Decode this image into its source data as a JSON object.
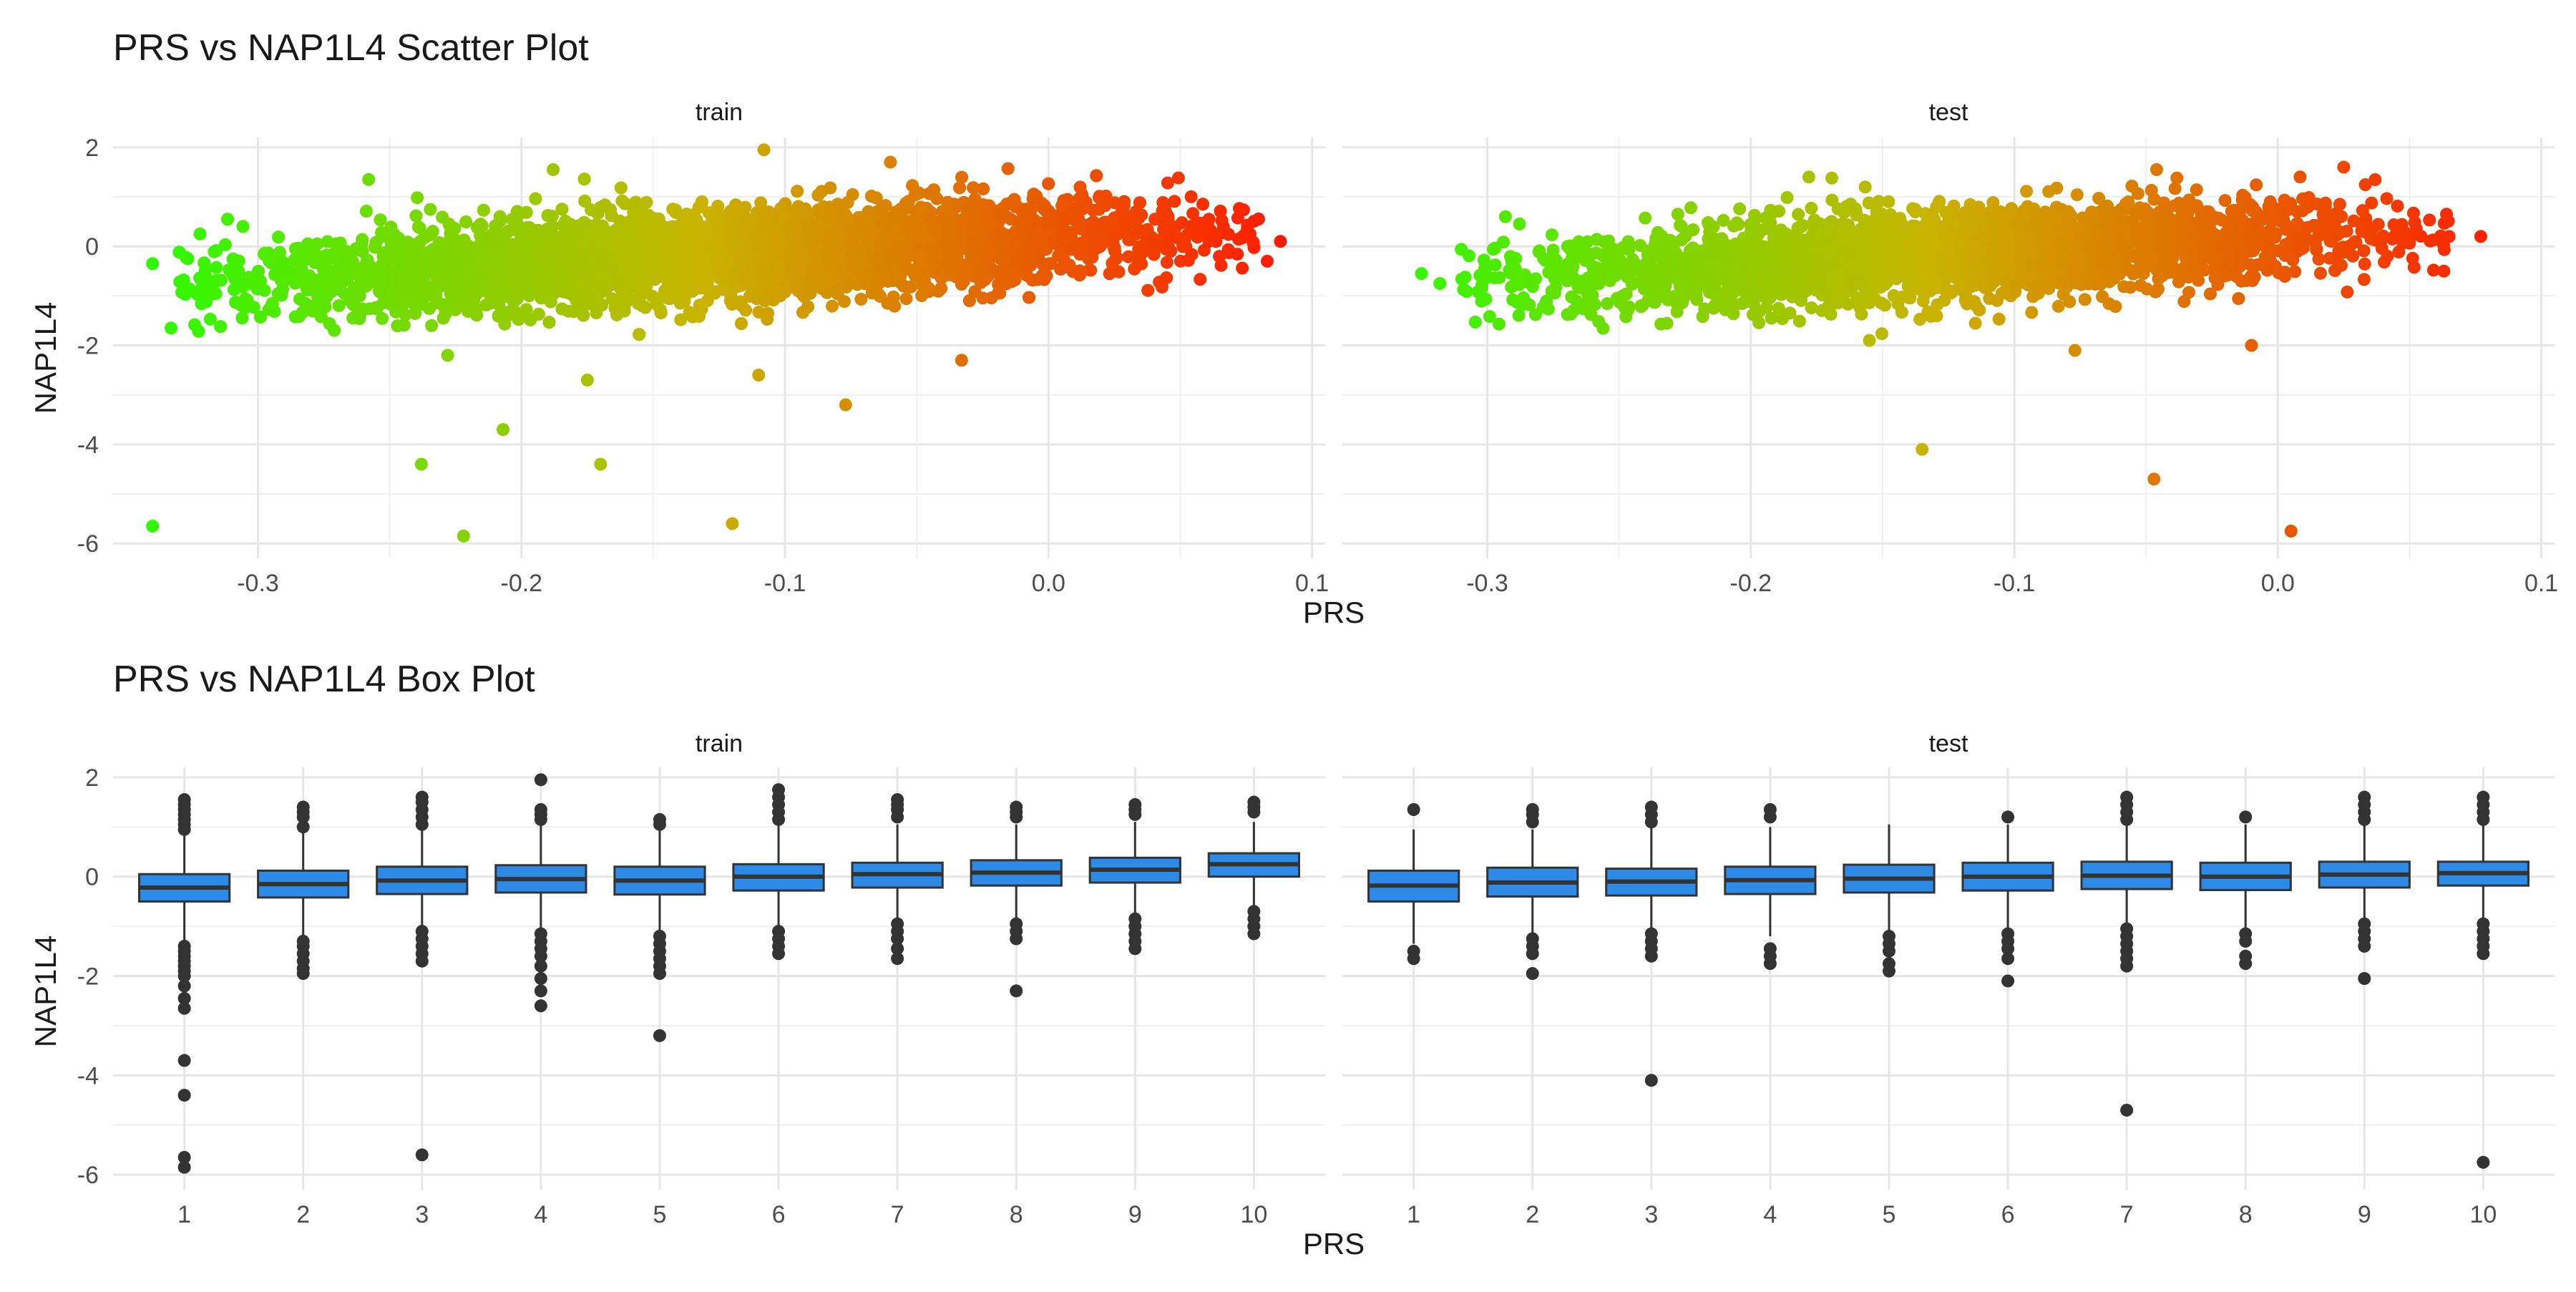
{
  "chart_data": [
    {
      "type": "scatter",
      "title": "PRS vs NAP1L4 Scatter Plot",
      "xlabel": "PRS",
      "ylabel": "NAP1L4",
      "facets": [
        "train",
        "test"
      ],
      "xlim": [
        -0.355,
        0.105
      ],
      "ylim": [
        -6.3,
        2.2
      ],
      "x_ticks": [
        -0.3,
        -0.2,
        -0.1,
        0.0,
        0.1
      ],
      "x_tick_labels": [
        "-0.3",
        "-0.2",
        "-0.1",
        "0.0",
        "0.1"
      ],
      "y_ticks": [
        2,
        0,
        -2,
        -4,
        -6
      ],
      "y_tick_labels": [
        "2",
        "0",
        "-2",
        "-4",
        "-6"
      ],
      "grid": true,
      "color_gradient": {
        "low": "#22ff00",
        "mid": "#c8b400",
        "high": "#ff1a00",
        "mapped_to": "PRS"
      },
      "trend": {
        "slope": 2.8,
        "intercept": 0.15,
        "spread": 0.45
      },
      "panels": [
        {
          "name": "train",
          "x_range": [
            -0.33,
            0.08
          ],
          "outliers": [
            {
              "x": -0.34,
              "y": -5.65
            },
            {
              "x": -0.34,
              "y": -0.35
            },
            {
              "x": -0.322,
              "y": 0.25
            },
            {
              "x": -0.333,
              "y": -1.65
            },
            {
              "x": -0.238,
              "y": -4.4
            },
            {
              "x": -0.222,
              "y": -5.85
            },
            {
              "x": -0.207,
              "y": -3.7
            },
            {
              "x": -0.17,
              "y": -4.4
            },
            {
              "x": -0.12,
              "y": -5.6
            },
            {
              "x": -0.077,
              "y": -3.2
            },
            {
              "x": -0.033,
              "y": -2.3
            },
            {
              "x": -0.108,
              "y": 1.95
            },
            {
              "x": -0.258,
              "y": 1.35
            },
            {
              "x": -0.188,
              "y": 1.55
            },
            {
              "x": 0.088,
              "y": 0.1
            },
            {
              "x": 0.083,
              "y": -0.3
            },
            {
              "x": -0.11,
              "y": -2.6
            },
            {
              "x": -0.06,
              "y": 1.7
            },
            {
              "x": -0.175,
              "y": -2.7
            },
            {
              "x": -0.228,
              "y": -2.2
            }
          ]
        },
        {
          "name": "test",
          "x_range": [
            -0.31,
            0.065
          ],
          "outliers": [
            {
              "x": -0.135,
              "y": -4.1
            },
            {
              "x": -0.047,
              "y": -4.7
            },
            {
              "x": 0.005,
              "y": -5.75
            },
            {
              "x": -0.325,
              "y": -0.55
            },
            {
              "x": -0.318,
              "y": -0.75
            },
            {
              "x": 0.077,
              "y": 0.2
            },
            {
              "x": 0.064,
              "y": 0.65
            },
            {
              "x": 0.065,
              "y": 0.2
            },
            {
              "x": 0.063,
              "y": -0.5
            },
            {
              "x": -0.046,
              "y": 1.55
            },
            {
              "x": 0.025,
              "y": 1.6
            },
            {
              "x": -0.01,
              "y": -2.0
            },
            {
              "x": -0.155,
              "y": -1.9
            },
            {
              "x": -0.077,
              "y": -2.1
            },
            {
              "x": -0.178,
              "y": 1.4
            }
          ]
        }
      ]
    },
    {
      "type": "box",
      "title": "PRS vs NAP1L4 Box Plot",
      "xlabel": "PRS",
      "ylabel": "NAP1L4",
      "facets": [
        "train",
        "test"
      ],
      "categories": [
        "1",
        "2",
        "3",
        "4",
        "5",
        "6",
        "7",
        "8",
        "9",
        "10"
      ],
      "ylim": [
        -6.3,
        2.2
      ],
      "y_ticks": [
        2,
        0,
        -2,
        -4,
        -6
      ],
      "y_tick_labels": [
        "2",
        "0",
        "-2",
        "-4",
        "-6"
      ],
      "grid": true,
      "box_fill": "#2d8ae6",
      "box_stroke": "#333333",
      "panels": [
        {
          "name": "train",
          "boxes": [
            {
              "q1": -0.5,
              "median": -0.22,
              "q3": 0.05,
              "lower": -1.3,
              "upper": 0.9,
              "outliers": [
                1.55,
                1.45,
                1.35,
                1.25,
                1.15,
                1.05,
                0.95,
                -1.4,
                -1.5,
                -1.6,
                -1.7,
                -1.8,
                -1.9,
                -2.0,
                -2.2,
                -2.45,
                -2.65,
                -3.7,
                -4.4,
                -5.65,
                -5.85
              ]
            },
            {
              "q1": -0.42,
              "median": -0.15,
              "q3": 0.12,
              "lower": -1.2,
              "upper": 0.9,
              "outliers": [
                1.4,
                1.3,
                1.2,
                1.0,
                -1.3,
                -1.4,
                -1.55,
                -1.7,
                -1.85,
                -1.95
              ]
            },
            {
              "q1": -0.35,
              "median": -0.08,
              "q3": 0.2,
              "lower": -1.05,
              "upper": 1.0,
              "outliers": [
                1.6,
                1.5,
                1.35,
                1.2,
                1.05,
                -1.1,
                -1.25,
                -1.4,
                -1.55,
                -1.7,
                -5.6
              ]
            },
            {
              "q1": -0.32,
              "median": -0.05,
              "q3": 0.23,
              "lower": -1.05,
              "upper": 1.05,
              "outliers": [
                1.95,
                1.35,
                1.25,
                1.15,
                -1.15,
                -1.3,
                -1.45,
                -1.6,
                -1.8,
                -2.05,
                -2.3,
                -2.6
              ]
            },
            {
              "q1": -0.36,
              "median": -0.08,
              "q3": 0.2,
              "lower": -1.1,
              "upper": 1.0,
              "outliers": [
                1.15,
                1.05,
                -1.2,
                -1.35,
                -1.5,
                -1.65,
                -1.8,
                -1.95,
                -3.2
              ]
            },
            {
              "q1": -0.28,
              "median": 0.0,
              "q3": 0.25,
              "lower": -1.0,
              "upper": 1.05,
              "outliers": [
                1.75,
                1.6,
                1.45,
                1.3,
                1.15,
                -1.1,
                -1.25,
                -1.4,
                -1.55
              ]
            },
            {
              "q1": -0.22,
              "median": 0.05,
              "q3": 0.28,
              "lower": -0.9,
              "upper": 1.05,
              "outliers": [
                1.55,
                1.45,
                1.35,
                1.2,
                -0.95,
                -1.1,
                -1.25,
                -1.45,
                -1.65
              ]
            },
            {
              "q1": -0.18,
              "median": 0.08,
              "q3": 0.33,
              "lower": -0.85,
              "upper": 1.05,
              "outliers": [
                1.4,
                1.3,
                1.2,
                -0.95,
                -1.1,
                -1.25,
                -2.3
              ]
            },
            {
              "q1": -0.12,
              "median": 0.14,
              "q3": 0.38,
              "lower": -0.8,
              "upper": 1.1,
              "outliers": [
                1.45,
                1.35,
                1.25,
                -0.85,
                -1.0,
                -1.15,
                -1.3,
                -1.45
              ]
            },
            {
              "q1": 0.0,
              "median": 0.25,
              "q3": 0.47,
              "lower": -0.6,
              "upper": 1.1,
              "outliers": [
                1.5,
                1.4,
                1.3,
                -0.7,
                -0.85,
                -1.0,
                -1.15
              ]
            }
          ]
        },
        {
          "name": "test",
          "boxes": [
            {
              "q1": -0.5,
              "median": -0.18,
              "q3": 0.12,
              "lower": -1.35,
              "upper": 0.95,
              "outliers": [
                1.35,
                -1.5,
                -1.65
              ]
            },
            {
              "q1": -0.4,
              "median": -0.12,
              "q3": 0.18,
              "lower": -1.15,
              "upper": 0.95,
              "outliers": [
                1.35,
                1.25,
                1.1,
                -1.25,
                -1.4,
                -1.55,
                -1.95
              ]
            },
            {
              "q1": -0.38,
              "median": -0.1,
              "q3": 0.16,
              "lower": -1.1,
              "upper": 1.0,
              "outliers": [
                1.4,
                1.25,
                1.1,
                -1.15,
                -1.3,
                -1.45,
                -1.6,
                -4.1
              ]
            },
            {
              "q1": -0.35,
              "median": -0.07,
              "q3": 0.2,
              "lower": -1.2,
              "upper": 1.0,
              "outliers": [
                1.35,
                1.2,
                -1.45,
                -1.6,
                -1.75
              ]
            },
            {
              "q1": -0.32,
              "median": -0.04,
              "q3": 0.24,
              "lower": -1.1,
              "upper": 1.05,
              "outliers": [
                -1.2,
                -1.35,
                -1.5,
                -1.75,
                -1.9
              ]
            },
            {
              "q1": -0.28,
              "median": 0.0,
              "q3": 0.28,
              "lower": -1.05,
              "upper": 1.05,
              "outliers": [
                1.2,
                -1.15,
                -1.3,
                -1.45,
                -1.65,
                -2.1
              ]
            },
            {
              "q1": -0.25,
              "median": 0.02,
              "q3": 0.3,
              "lower": -1.0,
              "upper": 1.05,
              "outliers": [
                1.6,
                1.45,
                1.3,
                1.15,
                -1.05,
                -1.2,
                -1.35,
                -1.5,
                -1.65,
                -1.8,
                -4.7
              ]
            },
            {
              "q1": -0.27,
              "median": 0.0,
              "q3": 0.28,
              "lower": -1.05,
              "upper": 1.05,
              "outliers": [
                1.2,
                -1.15,
                -1.3,
                -1.6,
                -1.75
              ]
            },
            {
              "q1": -0.22,
              "median": 0.04,
              "q3": 0.3,
              "lower": -0.95,
              "upper": 1.05,
              "outliers": [
                1.6,
                1.45,
                1.3,
                1.15,
                -0.95,
                -1.1,
                -1.25,
                -1.4,
                -2.05
              ]
            },
            {
              "q1": -0.18,
              "median": 0.07,
              "q3": 0.3,
              "lower": -0.9,
              "upper": 1.1,
              "outliers": [
                1.6,
                1.45,
                1.3,
                1.15,
                -0.95,
                -1.1,
                -1.25,
                -1.4,
                -1.55,
                -5.75
              ]
            }
          ]
        }
      ]
    }
  ]
}
